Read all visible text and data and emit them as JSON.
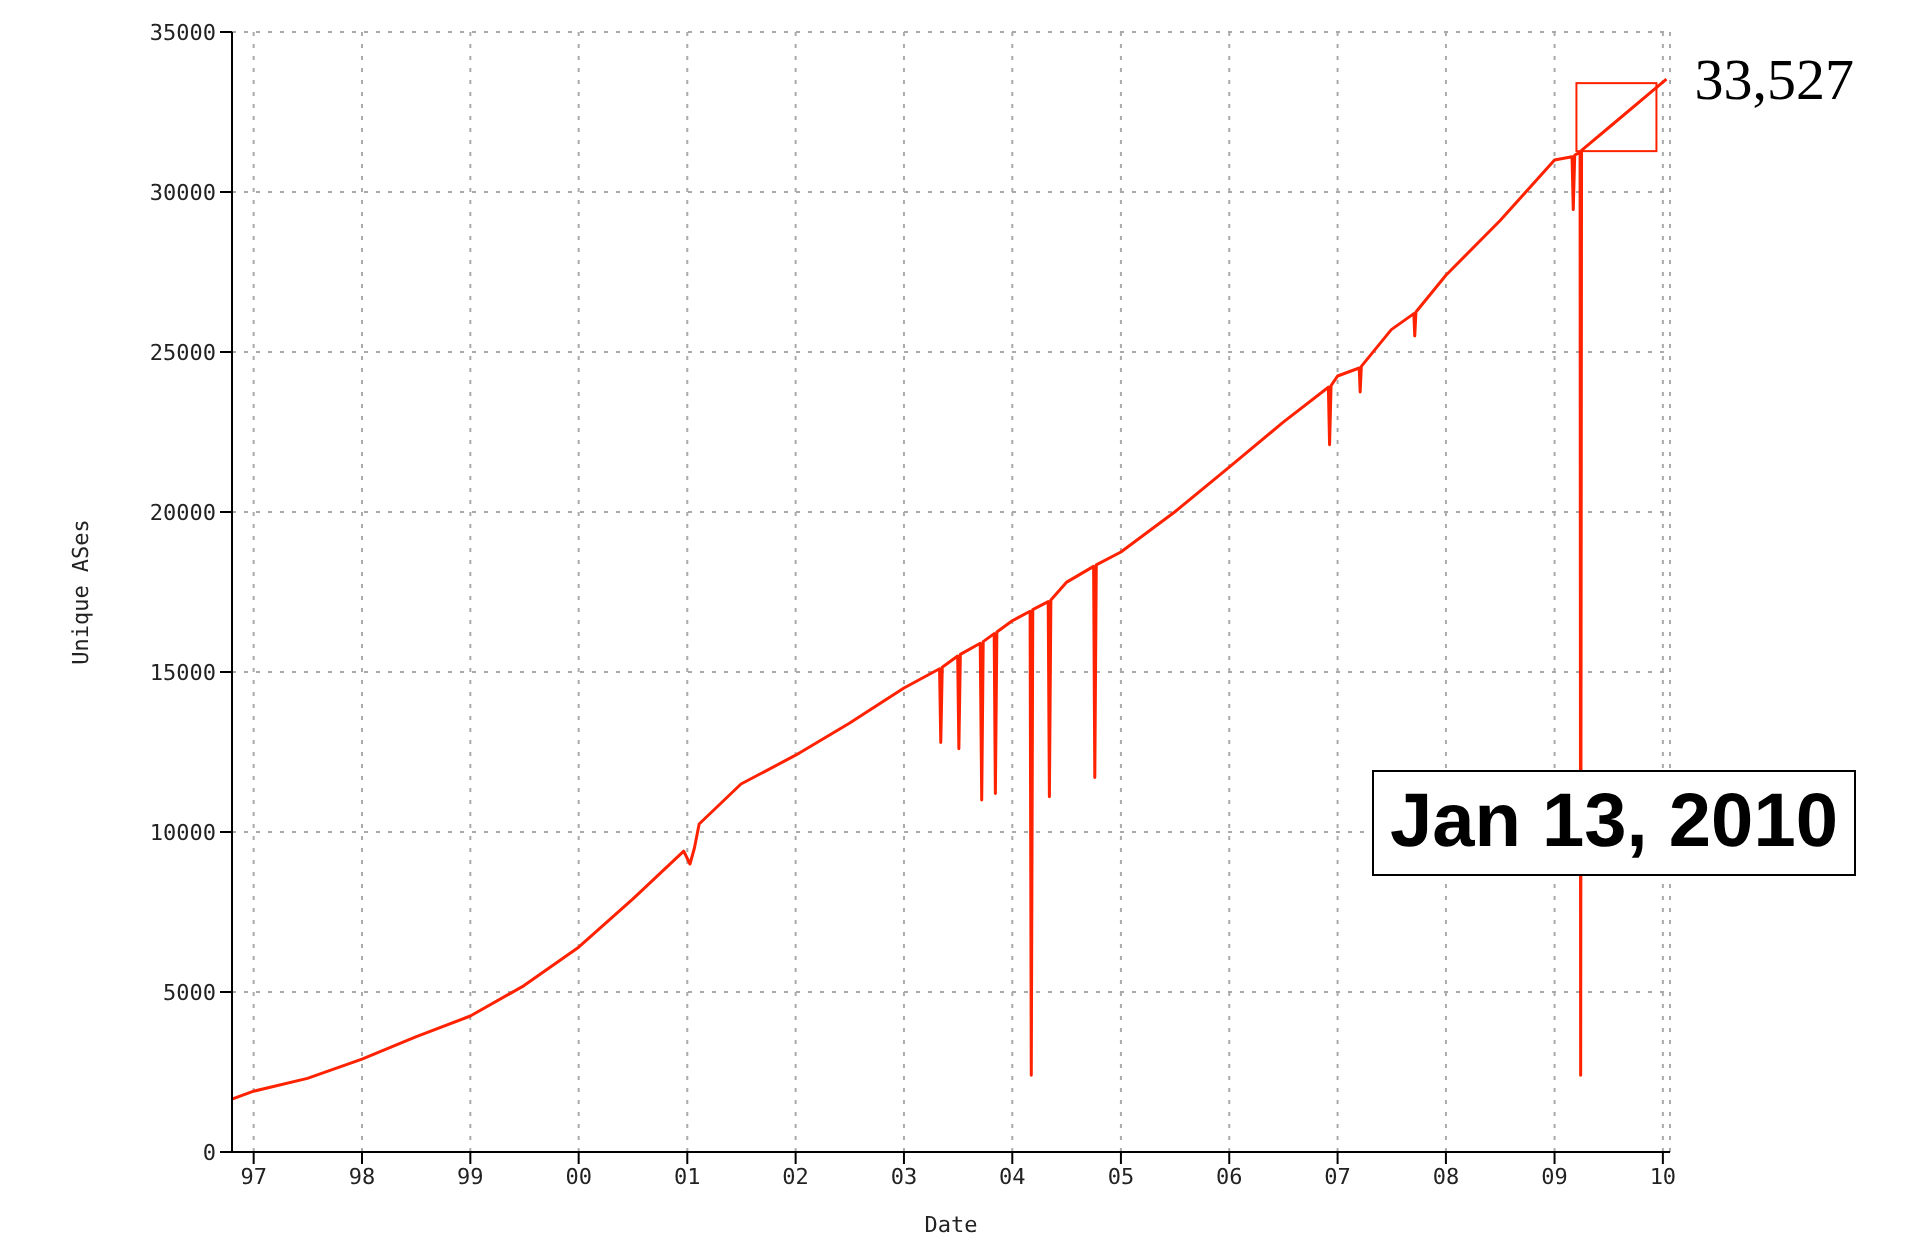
{
  "chart_data": {
    "type": "line",
    "xlabel": "Date",
    "ylabel": "Unique ASes",
    "xlim": [
      "1996-10-20",
      "2010-01-25"
    ],
    "xticks": [
      {
        "value": "1997-01-01",
        "label": "97"
      },
      {
        "value": "1998-01-01",
        "label": "98"
      },
      {
        "value": "1999-01-01",
        "label": "99"
      },
      {
        "value": "2000-01-01",
        "label": "00"
      },
      {
        "value": "2001-01-01",
        "label": "01"
      },
      {
        "value": "2002-01-01",
        "label": "02"
      },
      {
        "value": "2003-01-01",
        "label": "03"
      },
      {
        "value": "2004-01-01",
        "label": "04"
      },
      {
        "value": "2005-01-01",
        "label": "05"
      },
      {
        "value": "2006-01-01",
        "label": "06"
      },
      {
        "value": "2007-01-01",
        "label": "07"
      },
      {
        "value": "2008-01-01",
        "label": "08"
      },
      {
        "value": "2009-01-01",
        "label": "09"
      },
      {
        "value": "2010-01-01",
        "label": "10"
      }
    ],
    "ylim": [
      0,
      35000
    ],
    "yticks": [
      0,
      5000,
      10000,
      15000,
      20000,
      25000,
      30000,
      35000
    ],
    "grid": true,
    "marker": "none",
    "line_style": "solid",
    "x": [
      "1996-10-20",
      "1997-01-01",
      "1997-07-01",
      "1998-01-01",
      "1998-07-01",
      "1999-01-01",
      "1999-07-01",
      "2000-01-01",
      "2000-07-01",
      "2000-12-20",
      "2001-01-10",
      "2001-01-25",
      "2001-02-10",
      "2001-07-01",
      "2002-01-01",
      "2002-07-01",
      "2003-01-01",
      "2003-05-01",
      "2003-05-05",
      "2003-05-10",
      "2003-07-01",
      "2003-07-05",
      "2003-07-10",
      "2003-09-15",
      "2003-09-20",
      "2003-09-25",
      "2003-11-01",
      "2003-11-05",
      "2003-11-10",
      "2004-01-01",
      "2004-03-01",
      "2004-03-05",
      "2004-03-10",
      "2004-05-01",
      "2004-05-05",
      "2004-05-10",
      "2004-07-01",
      "2004-10-01",
      "2004-10-05",
      "2004-10-10",
      "2005-01-01",
      "2005-07-01",
      "2006-01-01",
      "2006-07-01",
      "2006-12-01",
      "2006-12-05",
      "2006-12-10",
      "2007-01-01",
      "2007-03-15",
      "2007-03-18",
      "2007-03-22",
      "2007-07-01",
      "2007-09-15",
      "2007-09-18",
      "2007-09-22",
      "2008-01-01",
      "2008-07-01",
      "2009-01-01",
      "2009-03-01",
      "2009-03-05",
      "2009-03-10",
      "2009-03-28",
      "2009-03-30",
      "2009-04-02",
      "2009-07-01",
      "2010-01-13"
    ],
    "series": [
      {
        "color": "#ff2200",
        "values": [
          1650,
          1900,
          2300,
          2900,
          3600,
          4250,
          5200,
          6400,
          7900,
          9400,
          9000,
          9500,
          10250,
          11500,
          12400,
          13400,
          14500,
          15100,
          12800,
          15150,
          15500,
          12600,
          15550,
          15900,
          11000,
          15950,
          16200,
          11200,
          16250,
          16600,
          16900,
          2400,
          16950,
          17200,
          11100,
          17250,
          17800,
          18300,
          11700,
          18350,
          18750,
          20000,
          21400,
          22800,
          23900,
          22100,
          23950,
          24250,
          24500,
          23750,
          24550,
          25700,
          26200,
          25500,
          26250,
          27400,
          29100,
          31000,
          31100,
          29450,
          31150,
          31250,
          2400,
          31300,
          32000,
          33527
        ]
      }
    ],
    "annotations": [
      {
        "text": "33,527",
        "x": "2010-01-13",
        "y": 33527
      },
      "Jan 13, 2010"
    ]
  }
}
